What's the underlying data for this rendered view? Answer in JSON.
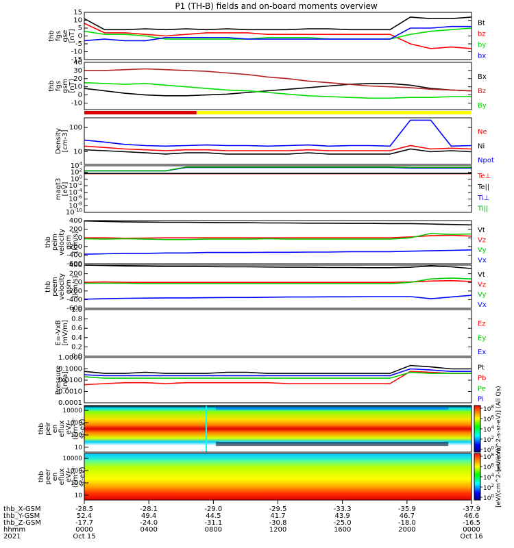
{
  "chart_data": {
    "type": "line",
    "title": "P1 (TH-B) fields and on-board moments overview",
    "panels": [
      {
        "id": "fgs-gse",
        "ylabel": [
          "thb",
          "fgs",
          "gse",
          "[nT]"
        ],
        "yticks": [
          "15",
          "10",
          "5",
          "0",
          "-5",
          "-10",
          "-15"
        ],
        "ylim": [
          -15,
          15
        ],
        "log": false,
        "series": [
          {
            "name": "Bt",
            "color": "#000000",
            "y": [
              11,
              4,
              4,
              4.5,
              4,
              4.5,
              4,
              4.5,
              4,
              4,
              4,
              4.5,
              4.5,
              4,
              4,
              4,
              12,
              11,
              11,
              12
            ]
          },
          {
            "name": "bz",
            "color": "#ff0000",
            "y": [
              8,
              2,
              2,
              1,
              0,
              1,
              2,
              2,
              2,
              1,
              1,
              1,
              1,
              1,
              1,
              1,
              -5,
              -8,
              -7,
              -8
            ]
          },
          {
            "name": "by",
            "color": "#00dd00",
            "y": [
              3,
              1,
              1,
              0,
              -2,
              -2,
              -2,
              -2,
              -2,
              -1,
              -1,
              -1,
              -2,
              -2,
              -2,
              -2,
              1,
              3,
              4,
              5
            ]
          },
          {
            "name": "bx",
            "color": "#0000ff",
            "y": [
              -3,
              -2,
              -3,
              -3,
              -1,
              -1,
              -1,
              -1,
              -2,
              -2,
              -2,
              -2,
              -2,
              -2,
              -2,
              -2,
              5,
              5,
              6,
              6
            ]
          }
        ]
      },
      {
        "id": "fgs-gsm",
        "ylabel": [
          "thb",
          "fgs",
          "gsm",
          "[nT]"
        ],
        "yticks": [
          "40",
          "30",
          "20",
          "10",
          "0",
          "-10"
        ],
        "ylim": [
          -18,
          40
        ],
        "log": false,
        "series": [
          {
            "name": "Bx",
            "color": "#000000",
            "y": [
              8,
              5,
              2,
              0,
              -1,
              -1,
              0,
              1,
              3,
              5,
              7,
              9,
              11,
              13,
              14,
              14,
              12,
              8,
              6,
              5
            ]
          },
          {
            "name": "Bz",
            "color": "#b22222",
            "y": [
              30,
              30,
              31,
              32,
              31,
              30,
              29,
              27,
              25,
              22,
              20,
              17,
              15,
              13,
              11,
              10,
              9,
              7,
              6,
              5
            ]
          },
          {
            "name": "By",
            "color": "#00dd00",
            "y": [
              15,
              14,
              13,
              14,
              12,
              10,
              8,
              6,
              5,
              3,
              1,
              -1,
              -2,
              -3,
              -4,
              -4,
              -3,
              -3,
              -2,
              -2
            ]
          }
        ]
      },
      {
        "id": "density",
        "ylabel": [
          "Density",
          "[cm-3]"
        ],
        "yticks": [
          "100",
          "10"
        ],
        "ylim": [
          3,
          250
        ],
        "log": true,
        "series": [
          {
            "name": "Ne",
            "color": "#ff0000",
            "y": [
              17,
              15,
              13,
              12,
              11,
              12,
              12,
              11,
              11,
              11,
              11,
              12,
              11,
              11,
              11,
              11,
              18,
              13,
              14,
              13
            ]
          },
          {
            "name": "Ni",
            "color": "#000000",
            "y": [
              12,
              11,
              10,
              9,
              8,
              9,
              9,
              8,
              8,
              8,
              8,
              9,
              8,
              8,
              8,
              8,
              13,
              10,
              11,
              10
            ]
          },
          {
            "name": "Npot",
            "color": "#0000ff",
            "y": [
              30,
              25,
              20,
              18,
              17,
              18,
              19,
              18,
              18,
              17,
              18,
              19,
              17,
              18,
              18,
              17,
              200,
              200,
              17,
              18
            ]
          }
        ]
      },
      {
        "id": "temperature",
        "ylabel": [
          "magt3",
          "[eV]"
        ],
        "yticks": [
          "10^4",
          "10^2",
          "10^0",
          "10^-2",
          "10^-4",
          "10^-6",
          "10^-8",
          "10^-10"
        ],
        "ylim": [
          1e-10,
          10000.0
        ],
        "log": true,
        "series": [
          {
            "name": "Te⊥",
            "color": "#ff0000",
            "y": [
              40,
              40,
              40,
              40,
              40,
              40,
              40,
              40,
              40,
              40,
              40,
              40,
              40,
              40,
              40,
              40,
              40,
              40,
              40,
              40
            ]
          },
          {
            "name": "Te||",
            "color": "#000000",
            "y": [
              50,
              50,
              50,
              50,
              50,
              50,
              50,
              50,
              50,
              50,
              50,
              50,
              50,
              50,
              50,
              50,
              50,
              50,
              50,
              50
            ]
          },
          {
            "name": "Ti⊥",
            "color": "#0000ff",
            "y": [
              300,
              300,
              300,
              300,
              300,
              3000,
              3000,
              3000,
              3000,
              3000,
              3000,
              3000,
              3000,
              3000,
              3000,
              3000,
              2000,
              2000,
              2000,
              2000
            ]
          },
          {
            "name": "Ti||",
            "color": "#00aa00",
            "y": [
              300,
              300,
              300,
              300,
              300,
              4000,
              4000,
              4000,
              4000,
              4000,
              4000,
              4000,
              4000,
              4000,
              4000,
              4000,
              3000,
              3000,
              3000,
              3000
            ]
          }
        ]
      },
      {
        "id": "peim-velocity",
        "ylabel": [
          "thb",
          "peim",
          "velocity",
          "gsm",
          "[km/s]"
        ],
        "yticks": [
          "400",
          "200",
          "0",
          "-200",
          "-400",
          "-600"
        ],
        "ylim": [
          -600,
          400
        ],
        "log": false,
        "series": [
          {
            "name": "Vt",
            "color": "#000000",
            "y": [
              390,
              380,
              370,
              365,
              360,
              360,
              355,
              350,
              350,
              345,
              345,
              340,
              340,
              335,
              335,
              330,
              330,
              320,
              310,
              300
            ]
          },
          {
            "name": "Vz",
            "color": "#ff0000",
            "y": [
              0,
              0,
              -10,
              -5,
              0,
              0,
              0,
              0,
              0,
              0,
              0,
              0,
              0,
              0,
              0,
              0,
              20,
              50,
              60,
              40
            ]
          },
          {
            "name": "Vy",
            "color": "#00cc00",
            "y": [
              -20,
              -30,
              -20,
              -30,
              -40,
              -40,
              -30,
              -30,
              -30,
              -20,
              -30,
              -30,
              -30,
              -30,
              -30,
              -30,
              0,
              100,
              80,
              90
            ]
          },
          {
            "name": "Vx",
            "color": "#0000ff",
            "y": [
              -380,
              -370,
              -360,
              -360,
              -350,
              -350,
              -340,
              -340,
              -340,
              -335,
              -335,
              -330,
              -330,
              -320,
              -320,
              -320,
              -310,
              -300,
              -290,
              -280
            ]
          }
        ]
      },
      {
        "id": "peem-velocity",
        "ylabel": [
          "thb",
          "peem",
          "velocity",
          "gsm",
          "[km/s]"
        ],
        "yticks": [
          "400",
          "200",
          "0",
          "-200",
          "-400",
          "-600"
        ],
        "ylim": [
          -600,
          400
        ],
        "log": false,
        "series": [
          {
            "name": "Vt",
            "color": "#000000",
            "y": [
              400,
              390,
              380,
              375,
              370,
              370,
              365,
              360,
              360,
              355,
              350,
              350,
              345,
              345,
              340,
              340,
              350,
              380,
              360,
              320
            ]
          },
          {
            "name": "Vz",
            "color": "#ff0000",
            "y": [
              0,
              10,
              0,
              0,
              0,
              0,
              0,
              0,
              0,
              0,
              0,
              0,
              0,
              0,
              0,
              0,
              10,
              30,
              40,
              20
            ]
          },
          {
            "name": "Vy",
            "color": "#00cc00",
            "y": [
              -20,
              -20,
              -20,
              -30,
              -30,
              -30,
              -30,
              -30,
              -30,
              -30,
              -30,
              -30,
              -30,
              -30,
              -30,
              -30,
              0,
              80,
              100,
              80
            ]
          },
          {
            "name": "Vx",
            "color": "#0000ff",
            "y": [
              -390,
              -380,
              -370,
              -365,
              -360,
              -360,
              -355,
              -350,
              -350,
              -345,
              -340,
              -340,
              -335,
              -335,
              -330,
              -330,
              -330,
              -380,
              -340,
              -300
            ]
          }
        ]
      },
      {
        "id": "efield",
        "ylabel": [
          "E=-VxB",
          "[mV/m]"
        ],
        "yticks": [
          "1.0",
          "0.8",
          "0.6",
          "0.4",
          "0.2",
          "0.0"
        ],
        "ylim": [
          0,
          1
        ],
        "log": false,
        "series": [
          {
            "name": "Ez",
            "color": "#ff0000",
            "y": []
          },
          {
            "name": "Ey",
            "color": "#00cc00",
            "y": []
          },
          {
            "name": "Ex",
            "color": "#0000ff",
            "y": []
          }
        ]
      },
      {
        "id": "pressure",
        "ylabel": [
          "Pressure",
          "[nPa]"
        ],
        "yticks": [
          "1.0000",
          "0.1000",
          "0.0100",
          "0.0010",
          "0.0001"
        ],
        "ylim": [
          0.0001,
          1
        ],
        "log": true,
        "series": [
          {
            "name": "Pt",
            "color": "#000000",
            "y": [
              0.06,
              0.04,
              0.04,
              0.05,
              0.04,
              0.04,
              0.04,
              0.05,
              0.05,
              0.04,
              0.04,
              0.04,
              0.04,
              0.04,
              0.04,
              0.04,
              0.2,
              0.15,
              0.1,
              0.1
            ]
          },
          {
            "name": "Pb",
            "color": "#ff0000",
            "y": [
              0.004,
              0.005,
              0.006,
              0.006,
              0.005,
              0.006,
              0.006,
              0.006,
              0.006,
              0.006,
              0.005,
              0.005,
              0.005,
              0.005,
              0.005,
              0.005,
              0.06,
              0.05,
              0.04,
              0.04
            ]
          },
          {
            "name": "Pe",
            "color": "#00cc00",
            "y": [
              0.02,
              0.015,
              0.015,
              0.015,
              0.015,
              0.015,
              0.015,
              0.015,
              0.015,
              0.015,
              0.015,
              0.015,
              0.015,
              0.015,
              0.015,
              0.015,
              0.05,
              0.04,
              0.04,
              0.04
            ]
          },
          {
            "name": "Pi",
            "color": "#0000ff",
            "y": [
              0.03,
              0.025,
              0.025,
              0.025,
              0.025,
              0.025,
              0.025,
              0.025,
              0.025,
              0.025,
              0.025,
              0.025,
              0.025,
              0.025,
              0.025,
              0.025,
              0.1,
              0.08,
              0.06,
              0.06
            ]
          }
        ]
      },
      {
        "id": "peir-eflux",
        "type": "heatmap",
        "ylabel": [
          "thb",
          "peir",
          "en",
          "eflux",
          "eV/",
          "(cm^2-s-",
          "sr-eV)"
        ],
        "yticks": [
          "10000",
          "1000",
          "100",
          "10"
        ]
      },
      {
        "id": "peer-eflux",
        "type": "heatmap",
        "ylabel": [
          "thb",
          "peer",
          "en",
          "eflux",
          "eV/",
          "(cm^2-s-",
          "sr-eV)"
        ],
        "yticks": [
          "10000",
          "1000",
          "100",
          "10"
        ]
      }
    ],
    "state_bar": {
      "red_until_fraction": 0.29
    },
    "colorbars": [
      {
        "ticks": [
          "10^8",
          "10^6",
          "10^4",
          "10^2",
          "10^0"
        ],
        "label": "[eV/(cm^2-s-sr-eV)] (All Qs)"
      },
      {
        "ticks": [
          "10^8",
          "10^6",
          "10^4",
          "10^2",
          "10^0"
        ],
        "label": "[eV/(cm^2-s-sr-eV)]"
      }
    ],
    "x_axis": {
      "rows": [
        {
          "label": "thb_X-GSM",
          "values": [
            "-28.5",
            "-28.1",
            "-29.0",
            "-29.5",
            "-33.3",
            "-35.9",
            "-37.9"
          ]
        },
        {
          "label": "thb_Y-GSM",
          "values": [
            "52.4",
            "49.4",
            "44.5",
            "41.7",
            "43.9",
            "46.7",
            "46.6"
          ]
        },
        {
          "label": "thb_Z-GSM",
          "values": [
            "-17.7",
            "-24.0",
            "-31.1",
            "-30.8",
            "-25.0",
            "-18.0",
            "-16.5"
          ]
        },
        {
          "label": "hhmm",
          "values": [
            "0000",
            "0400",
            "0800",
            "1200",
            "1600",
            "2000",
            "0000"
          ]
        },
        {
          "label": "2021",
          "values": [
            "Oct 15",
            "",
            "",
            "",
            "",
            "",
            "Oct 16"
          ]
        }
      ]
    }
  }
}
